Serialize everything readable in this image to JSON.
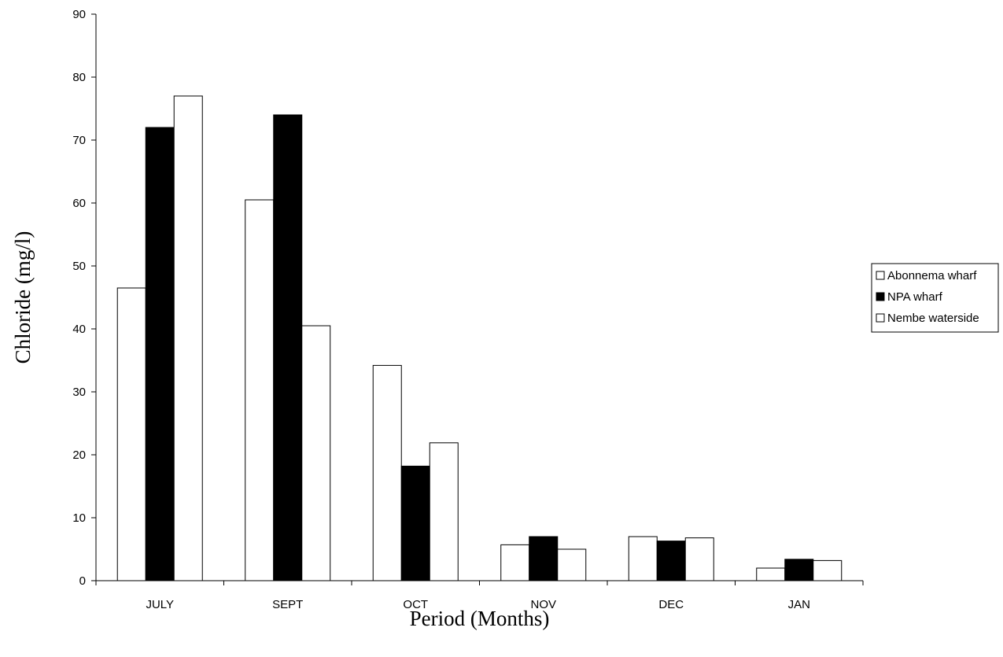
{
  "chart_data": {
    "type": "bar",
    "title": "",
    "xlabel": "Period (Months)",
    "ylabel": "Chloride (mg/l)",
    "categories": [
      "JULY",
      "SEPT",
      "OCT",
      "NOV",
      "DEC",
      "JAN"
    ],
    "ylim": [
      0,
      90
    ],
    "yticks": [
      "0",
      "10",
      "20",
      "30",
      "40",
      "50",
      "60",
      "70",
      "80",
      "90"
    ],
    "grid": false,
    "legend_position": "right",
    "series": [
      {
        "name": "Abonnema wharf",
        "color": "#ffffff",
        "values": [
          46.5,
          60.5,
          34.2,
          5.7,
          7.0,
          2.0
        ]
      },
      {
        "name": "NPA wharf",
        "color": "#000000",
        "values": [
          72.0,
          74.0,
          18.2,
          7.0,
          6.3,
          3.4
        ]
      },
      {
        "name": "Nembe waterside",
        "color": "#ffffff",
        "values": [
          77.0,
          40.5,
          21.9,
          5.0,
          6.8,
          3.2
        ]
      }
    ]
  }
}
